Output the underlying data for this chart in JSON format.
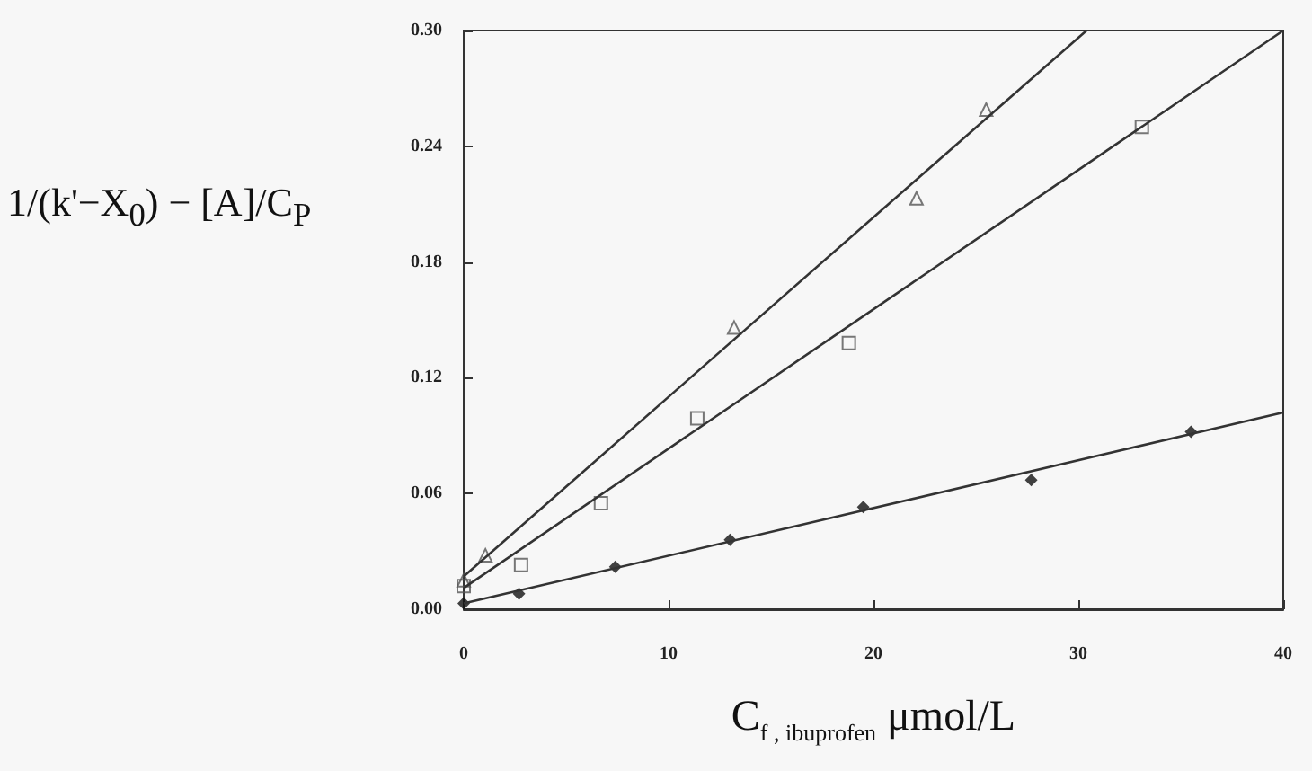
{
  "chart_data": {
    "type": "scatter",
    "xlabel": "C$_{f , ibuprofen}$   μmol/L",
    "ylabel": "1/(k'−X$_{0}$) − [A]/C$_{P}$",
    "xlim": [
      0,
      40
    ],
    "xticks": [
      0,
      10,
      20,
      30,
      40
    ],
    "ylim": [
      0,
      0.3
    ],
    "yticks": [
      {
        "value": 0,
        "label": "0.00"
      },
      {
        "value": 0.06,
        "label": "0.06"
      },
      {
        "value": 0.12,
        "label": "0.12"
      },
      {
        "value": 0.18,
        "label": "0.18"
      },
      {
        "value": 0.24,
        "label": "0.24"
      },
      {
        "value": 0.3,
        "label": "0.30"
      }
    ],
    "grid": false,
    "series": [
      {
        "marker": "triangle",
        "color": "#555555",
        "x": [
          0,
          1.06,
          13.2,
          22.1,
          25.5
        ],
        "values": [
          0.015,
          0.028,
          0.146,
          0.213,
          0.259
        ]
      },
      {
        "marker": "square",
        "color": "#555555",
        "x": [
          0,
          2.8,
          6.7,
          11.4,
          18.8,
          33.1
        ],
        "values": [
          0.012,
          0.023,
          0.055,
          0.099,
          0.138,
          0.25
        ]
      },
      {
        "marker": "diamond",
        "color": "#111111",
        "x": [
          0,
          2.7,
          7.4,
          13.0,
          19.5,
          27.7,
          35.5
        ],
        "values": [
          0.003,
          0.008,
          0.022,
          0.036,
          0.053,
          0.067,
          0.092
        ]
      },
      {
        "type": "line",
        "marker": "none",
        "color": "#333333",
        "x": [
          0,
          30.4
        ],
        "values": [
          0.017,
          0.3
        ]
      },
      {
        "type": "line",
        "marker": "none",
        "color": "#333333",
        "x": [
          0,
          40
        ],
        "values": [
          0.011,
          0.3
        ]
      },
      {
        "type": "line",
        "marker": "none",
        "color": "#333333",
        "x": [
          0,
          40
        ],
        "values": [
          0.003,
          0.102
        ]
      }
    ]
  }
}
